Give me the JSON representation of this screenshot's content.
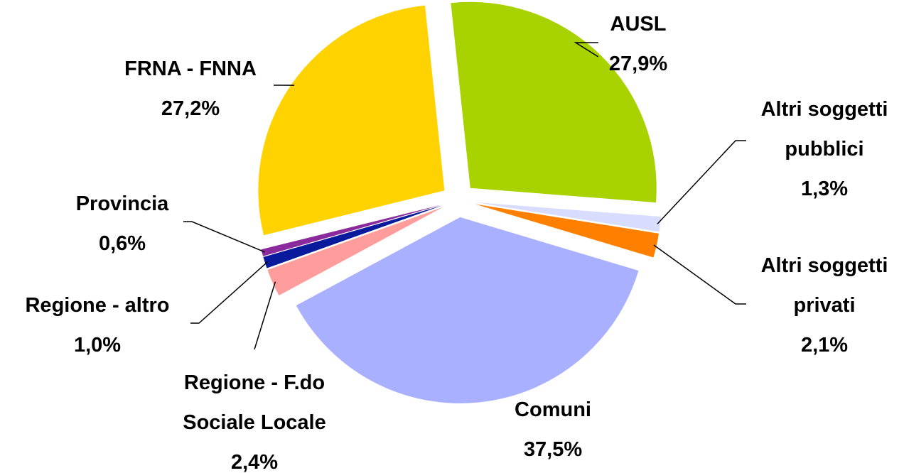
{
  "chart_data": {
    "type": "pie",
    "categories": [
      "AUSL",
      "Altri soggetti pubblici",
      "Altri soggetti privati",
      "Comuni",
      "Regione - F.do Sociale Locale",
      "Regione - altro",
      "Provincia",
      "FRNA - FNNA"
    ],
    "values": [
      27.9,
      1.3,
      2.1,
      37.5,
      2.4,
      1.0,
      0.6,
      27.2
    ],
    "value_labels": [
      "27,9%",
      "1,3%",
      "2,1%",
      "37,5%",
      "2,4%",
      "1,0%",
      "0,6%",
      "27,2%"
    ],
    "colors": [
      "#a8d200",
      "#d8dcff",
      "#ff8000",
      "#a9b0ff",
      "#ff9c9c",
      "#0a1a9c",
      "#8b2a9c",
      "#ffd200"
    ]
  }
}
